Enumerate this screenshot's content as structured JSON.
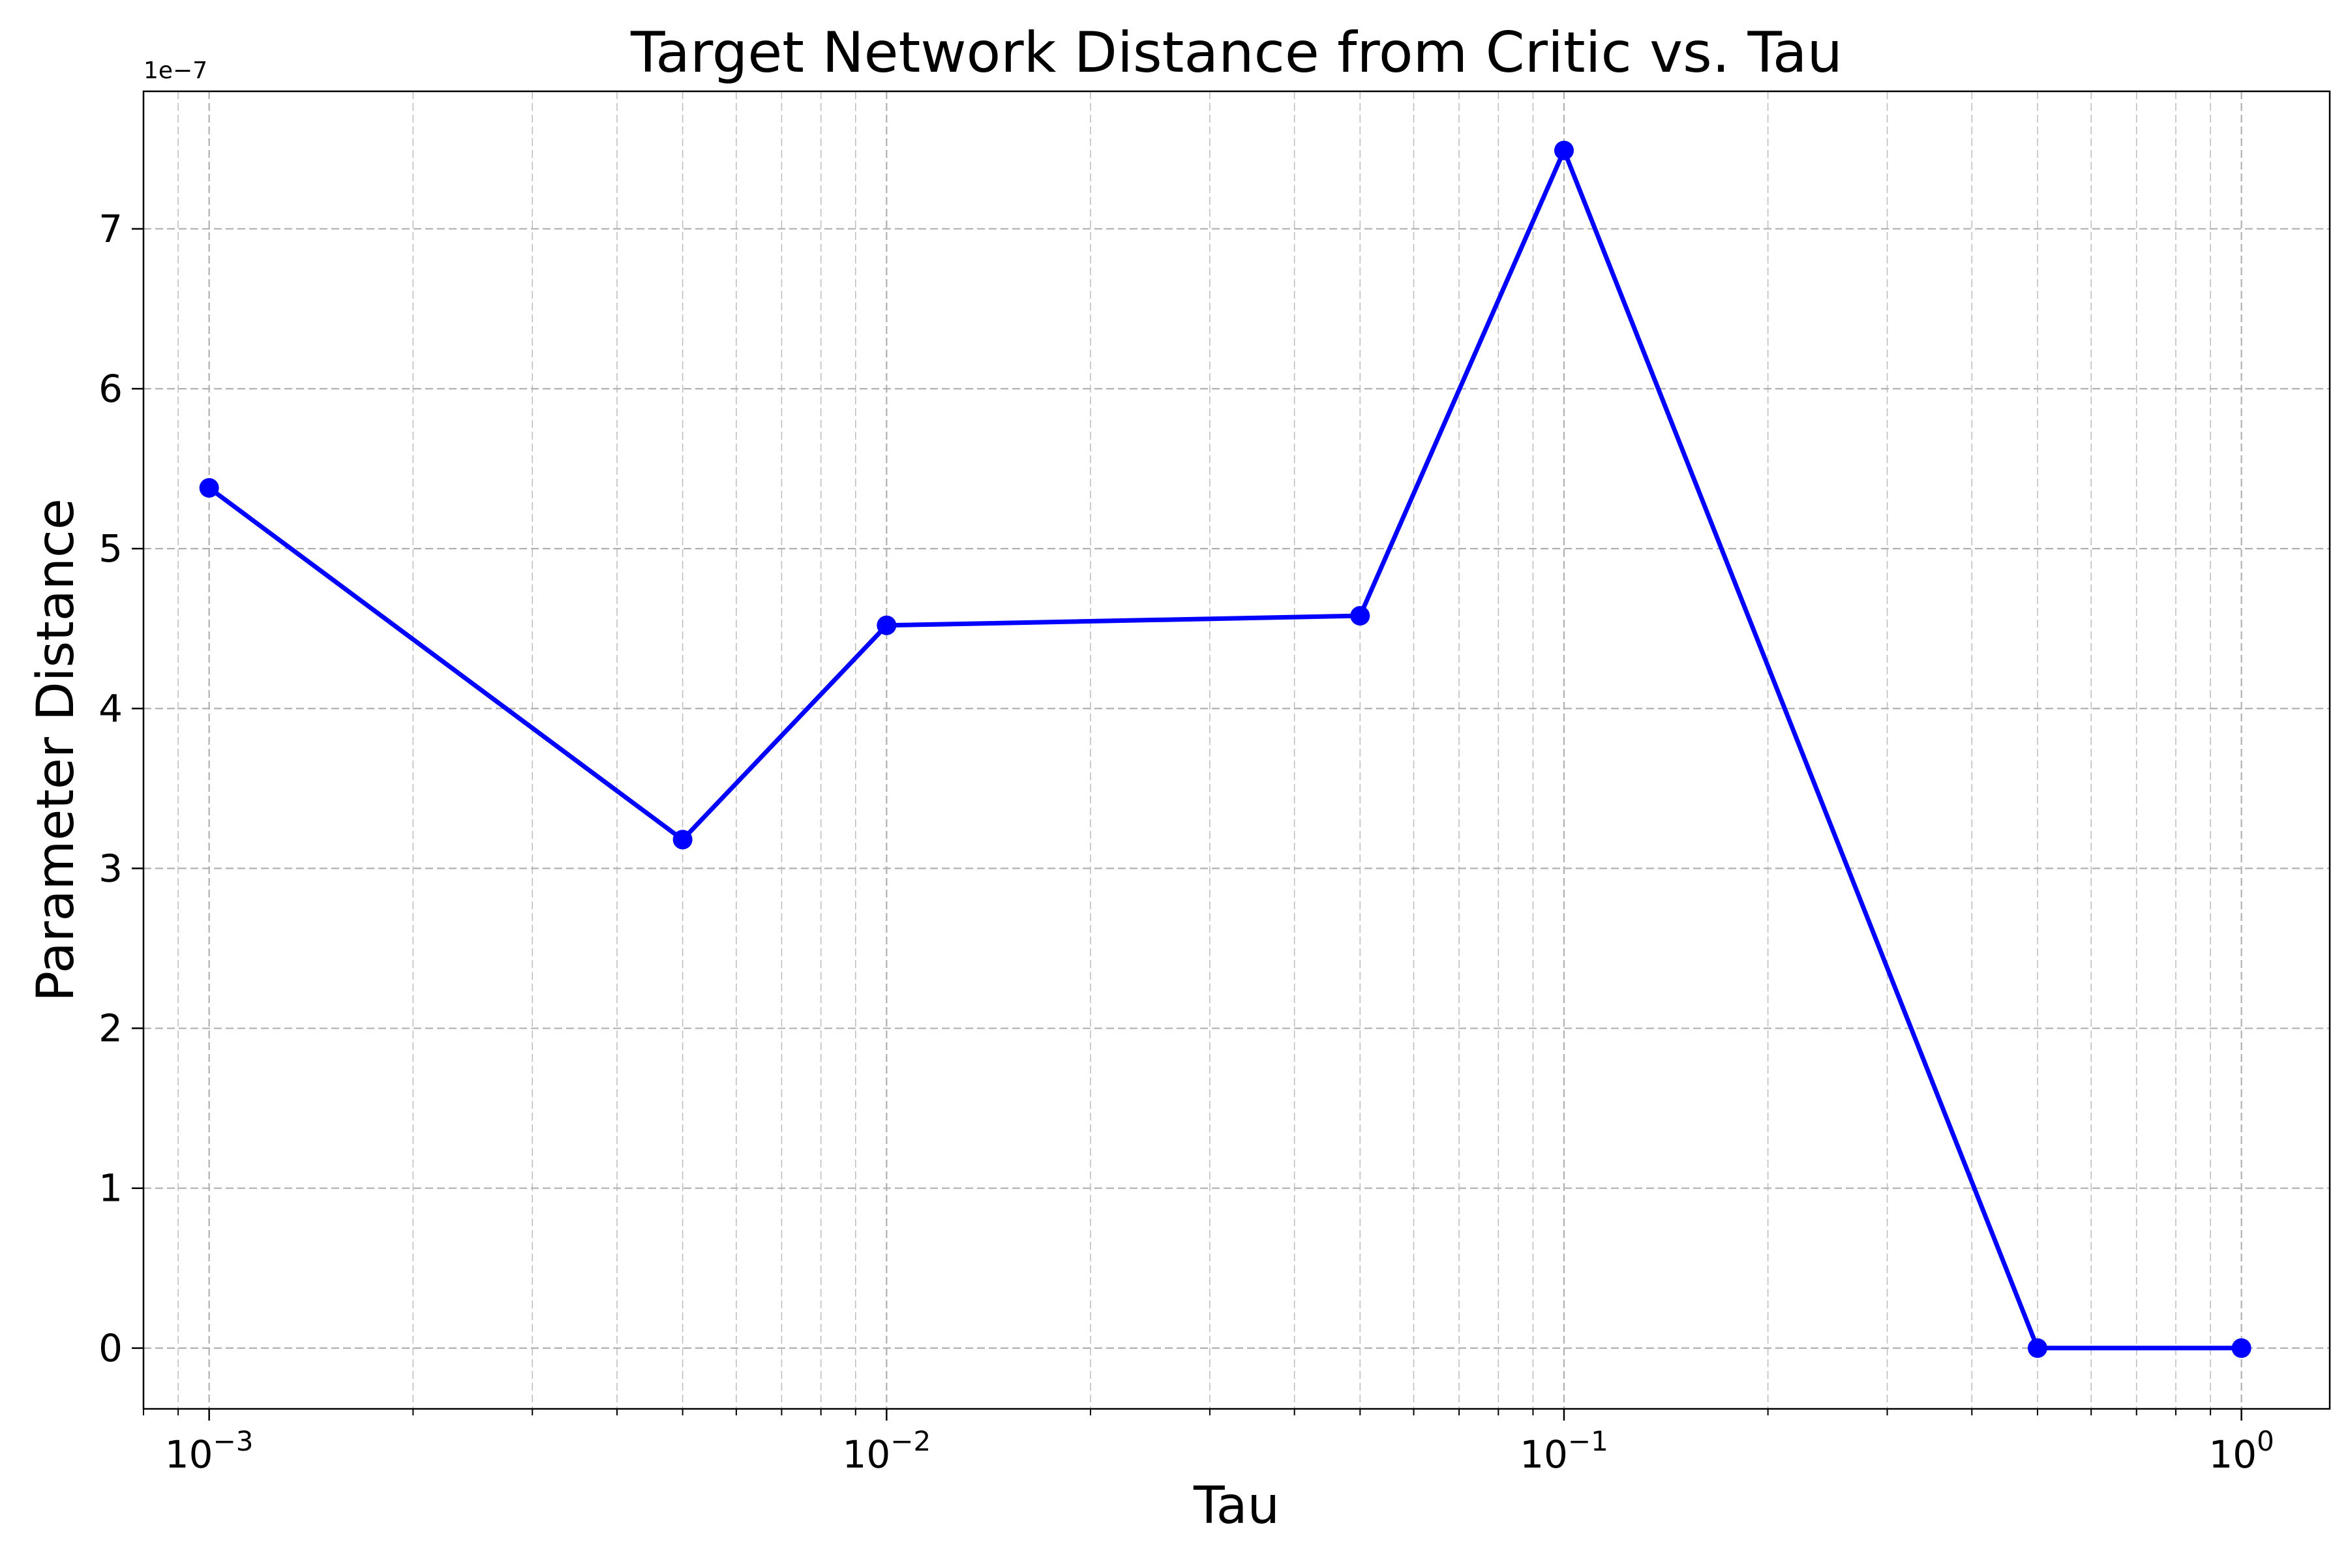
{
  "chart_data": {
    "type": "line",
    "title": "Target Network Distance from Critic vs. Tau",
    "xlabel": "Tau",
    "ylabel": "Parameter Distance",
    "x_scale": "log",
    "xlim": [
      0.0008,
      1.35
    ],
    "ylim": [
      -0.38,
      7.86
    ],
    "y_offset_label": "1e−7",
    "x_ticks": [
      {
        "value": 0.001,
        "base": "10",
        "exp": "−3"
      },
      {
        "value": 0.01,
        "base": "10",
        "exp": "−2"
      },
      {
        "value": 0.1,
        "base": "10",
        "exp": "−1"
      },
      {
        "value": 1,
        "base": "10",
        "exp": "0"
      }
    ],
    "y_ticks": [
      "0",
      "1",
      "2",
      "3",
      "4",
      "5",
      "6",
      "7"
    ],
    "grid": true,
    "series": [
      {
        "color": "#0000ff",
        "marker": "circle",
        "x": [
          0.001,
          0.005,
          0.01,
          0.05,
          0.1,
          0.5,
          1.0
        ],
        "y": [
          5.38,
          3.18,
          4.52,
          4.58,
          7.49,
          0.0,
          0.0
        ]
      }
    ]
  }
}
